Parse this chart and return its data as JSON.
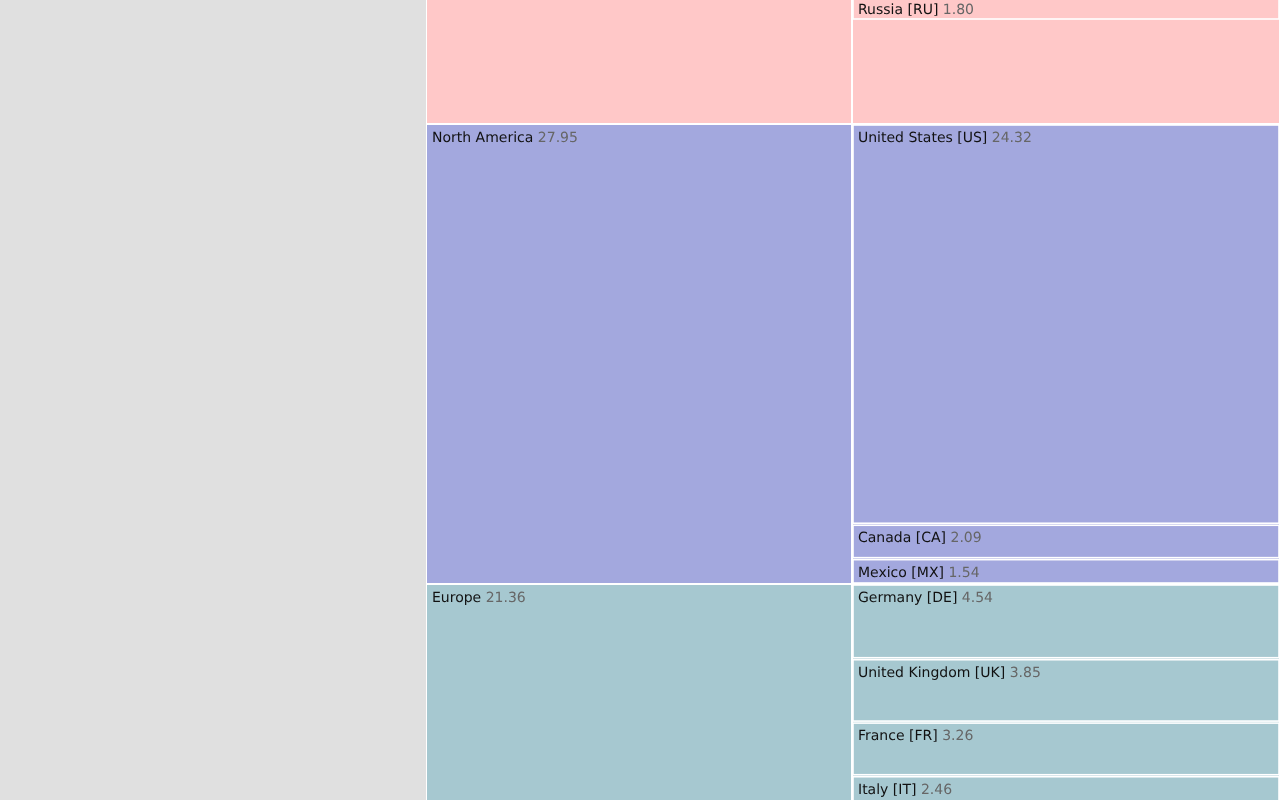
{
  "chart_data": {
    "type": "other",
    "categories": [
      "Russia [RU]",
      "United States [US]",
      "Canada [CA]",
      "Mexico [MX]",
      "Germany [DE]",
      "United Kingdom [UK]",
      "France [FR]",
      "Italy [IT]"
    ],
    "series": [
      {
        "color": "#ffc8c8",
        "values": [
          1.8,
          null,
          null,
          null,
          null,
          null,
          null,
          null
        ],
        "value_labels": [
          "1.80",
          null,
          null,
          null,
          null,
          null,
          null,
          null
        ]
      },
      {
        "color": "#a3a8de",
        "values": [
          null,
          24.32,
          2.09,
          1.54,
          null,
          null,
          null,
          null
        ],
        "value_labels": [
          null,
          "24.32",
          "2.09",
          "1.54",
          null,
          null,
          null,
          null
        ]
      },
      {
        "color": "#a6c8d0",
        "values": [
          null,
          null,
          null,
          null,
          4.54,
          3.85,
          3.26,
          2.46
        ],
        "value_labels": [
          null,
          null,
          null,
          null,
          "4.54",
          "3.85",
          "3.26",
          "2.46"
        ]
      }
    ],
    "annotations": [
      null,
      "North America",
      "Europe"
    ],
    "totals": [
      null,
      "27.95",
      "21.36"
    ]
  }
}
